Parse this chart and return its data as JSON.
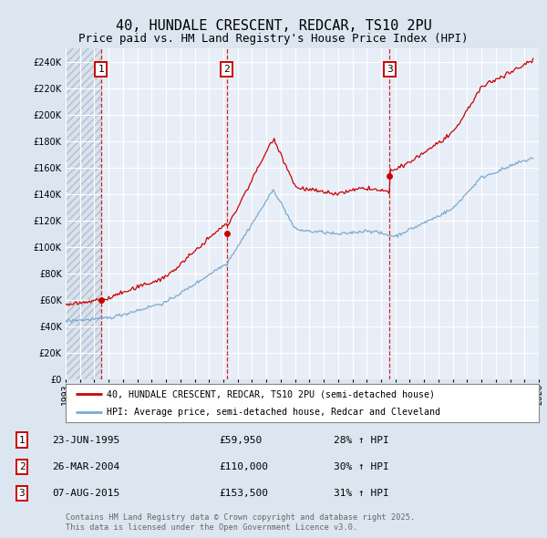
{
  "title": "40, HUNDALE CRESCENT, REDCAR, TS10 2PU",
  "subtitle": "Price paid vs. HM Land Registry's House Price Index (HPI)",
  "background_color": "#dce6f1",
  "plot_bg_color": "#e8eef7",
  "hatch_bg_color": "#d8e2ed",
  "ylim": [
    0,
    250000
  ],
  "yticks": [
    0,
    20000,
    40000,
    60000,
    80000,
    100000,
    120000,
    140000,
    160000,
    180000,
    200000,
    220000,
    240000
  ],
  "ytick_labels": [
    "£0",
    "£20K",
    "£40K",
    "£60K",
    "£80K",
    "£100K",
    "£120K",
    "£140K",
    "£160K",
    "£180K",
    "£200K",
    "£220K",
    "£240K"
  ],
  "xmin": 1993,
  "xmax": 2026,
  "hatch_xmax": 1995.47,
  "purchases": [
    {
      "num": 1,
      "date_t": 1995.47,
      "price": 59950,
      "pct": "28%",
      "label": "23-JUN-1995",
      "price_label": "£59,950"
    },
    {
      "num": 2,
      "date_t": 2004.23,
      "price": 110000,
      "pct": "30%",
      "label": "26-MAR-2004",
      "price_label": "£110,000"
    },
    {
      "num": 3,
      "date_t": 2015.6,
      "price": 153500,
      "pct": "31%",
      "label": "07-AUG-2015",
      "price_label": "£153,500"
    }
  ],
  "legend_line1": "40, HUNDALE CRESCENT, REDCAR, TS10 2PU (semi-detached house)",
  "legend_line2": "HPI: Average price, semi-detached house, Redcar and Cleveland",
  "footer1": "Contains HM Land Registry data © Crown copyright and database right 2025.",
  "footer2": "This data is licensed under the Open Government Licence v3.0.",
  "red_color": "#cc0000",
  "blue_color": "#7aaacf",
  "title_fontsize": 11,
  "subtitle_fontsize": 9,
  "axis_fontsize": 7
}
